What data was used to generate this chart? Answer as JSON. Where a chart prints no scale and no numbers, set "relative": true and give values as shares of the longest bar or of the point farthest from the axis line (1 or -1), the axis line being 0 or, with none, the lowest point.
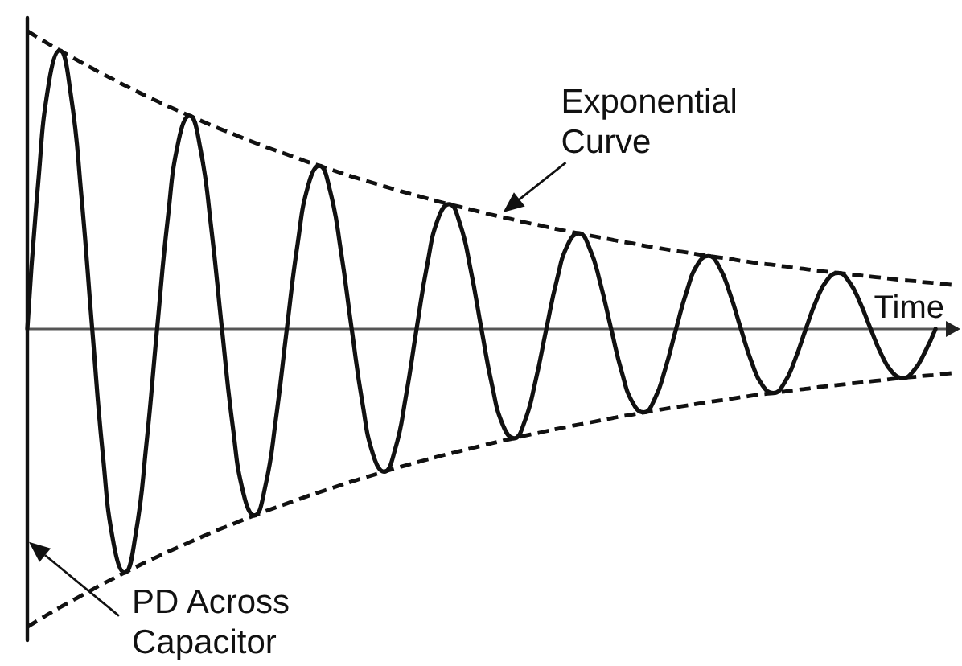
{
  "chart_data": {
    "type": "line",
    "relative": true,
    "xlabel": "Time",
    "ylabel": "PD Across Capacitor",
    "annotations": [
      "Exponential Curve"
    ],
    "marker": "none",
    "line_style": "solid",
    "categories": [
      null,
      null,
      null,
      null,
      null,
      null,
      null,
      null,
      null,
      null,
      null,
      null,
      null,
      null,
      null,
      null,
      null,
      null,
      null,
      null,
      null,
      null,
      null,
      null,
      null,
      null,
      null,
      null,
      null,
      null,
      null,
      null,
      null,
      null,
      null,
      null,
      null,
      null,
      null,
      null,
      null,
      null,
      null,
      null,
      null,
      null,
      null,
      null,
      null,
      null,
      null,
      null,
      null,
      null,
      null,
      null,
      null,
      null,
      null,
      null,
      null,
      null,
      null,
      null,
      null,
      null,
      null,
      null,
      null,
      null,
      null,
      null,
      null,
      null,
      null,
      null,
      null,
      null,
      null,
      null,
      null,
      null,
      null,
      null,
      null,
      null,
      null
    ],
    "series": [
      {
        "color": "#111111",
        "values": [
          0,
          0.489,
          0.828,
          0.935,
          0.792,
          0.447,
          0,
          -0.428,
          -0.724,
          -0.818,
          -0.693,
          -0.391,
          0,
          0.374,
          0.634,
          0.716,
          0.606,
          0.342,
          0,
          -0.327,
          -0.554,
          -0.626,
          -0.53,
          -0.299,
          0,
          0.286,
          0.485,
          0.548,
          0.464,
          0.262,
          0,
          -0.25,
          -0.424,
          -0.479,
          -0.406,
          -0.229,
          0,
          0.219,
          0.371,
          0.419,
          0.355,
          0.2,
          0,
          -0.192,
          -0.324,
          -0.367,
          -0.31,
          -0.175,
          0,
          0.168,
          0.284,
          0.321,
          0.271,
          0.153,
          0,
          -0.147,
          -0.248,
          -0.28,
          -0.237,
          -0.134,
          0,
          0.128,
          0.217,
          0.245,
          0.208,
          0.117,
          0,
          -0.112,
          -0.19,
          -0.215,
          -0.182,
          -0.103,
          0,
          0.098,
          0.166,
          0.188,
          0.159,
          0.09,
          0,
          -0.086,
          -0.145,
          -0.164,
          -0.139,
          -0.079,
          0,
          null,
          null
        ]
      },
      {
        "color": "#111111",
        "line_style": "dashed",
        "values": [
          1.0,
          0.978,
          0.956,
          0.935,
          0.915,
          0.895,
          0.875,
          0.855,
          0.837,
          0.818,
          0.8,
          0.782,
          0.765,
          0.748,
          0.732,
          0.716,
          0.7,
          0.684,
          0.669,
          0.655,
          0.64,
          0.626,
          0.612,
          0.599,
          0.586,
          0.573,
          0.56,
          0.548,
          0.536,
          0.524,
          0.512,
          0.501,
          0.49,
          0.479,
          0.468,
          0.458,
          0.448,
          0.438,
          0.428,
          0.419,
          0.41,
          0.401,
          0.392,
          0.383,
          0.375,
          0.367,
          0.358,
          0.351,
          0.343,
          0.335,
          0.328,
          0.321,
          0.314,
          0.307,
          0.3,
          0.293,
          0.287,
          0.28,
          0.274,
          0.268,
          0.262,
          0.257,
          0.251,
          0.245,
          0.24,
          0.235,
          0.229,
          0.224,
          0.219,
          0.215,
          0.21,
          0.205,
          0.201,
          0.196,
          0.192,
          0.188,
          0.184,
          0.18,
          0.176,
          0.172,
          0.168,
          0.164,
          0.161,
          0.157,
          0.154,
          0.15,
          0.147
        ]
      },
      {
        "color": "#111111",
        "line_style": "dashed",
        "values": [
          -1.0,
          -0.978,
          -0.956,
          -0.935,
          -0.915,
          -0.895,
          -0.875,
          -0.855,
          -0.837,
          -0.818,
          -0.8,
          -0.782,
          -0.765,
          -0.748,
          -0.732,
          -0.716,
          -0.7,
          -0.684,
          -0.669,
          -0.655,
          -0.64,
          -0.626,
          -0.612,
          -0.599,
          -0.586,
          -0.573,
          -0.56,
          -0.548,
          -0.536,
          -0.524,
          -0.512,
          -0.501,
          -0.49,
          -0.479,
          -0.468,
          -0.458,
          -0.448,
          -0.438,
          -0.428,
          -0.419,
          -0.41,
          -0.401,
          -0.392,
          -0.383,
          -0.375,
          -0.367,
          -0.358,
          -0.351,
          -0.343,
          -0.335,
          -0.328,
          -0.321,
          -0.314,
          -0.307,
          -0.3,
          -0.293,
          -0.287,
          -0.28,
          -0.274,
          -0.268,
          -0.262,
          -0.257,
          -0.251,
          -0.245,
          -0.24,
          -0.235,
          -0.229,
          -0.224,
          -0.219,
          -0.215,
          -0.21,
          -0.205,
          -0.201,
          -0.196,
          -0.192,
          -0.188,
          -0.184,
          -0.18,
          -0.176,
          -0.172,
          -0.168,
          -0.164,
          -0.161,
          -0.157,
          -0.154,
          -0.15,
          -0.147
        ]
      }
    ]
  }
}
